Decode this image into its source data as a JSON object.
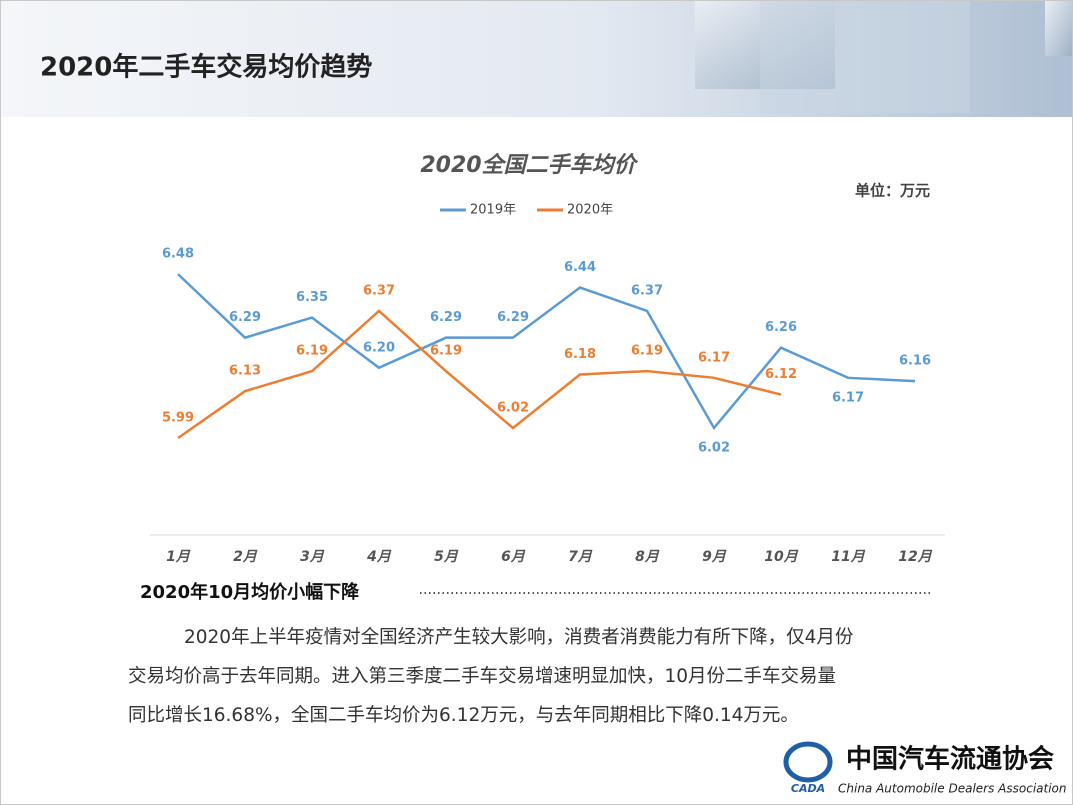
{
  "header": {
    "title": "2020年二手车交易均价趋势"
  },
  "chart_data": {
    "type": "line",
    "title": "2020全国二手车均价",
    "unit_label": "单位：万元",
    "categories": [
      "1月",
      "2月",
      "3月",
      "4月",
      "5月",
      "6月",
      "7月",
      "8月",
      "9月",
      "10月",
      "11月",
      "12月"
    ],
    "series": [
      {
        "name": "2019年",
        "color": "#5b9bd5",
        "values": [
          6.48,
          6.29,
          6.35,
          6.2,
          6.29,
          6.29,
          6.44,
          6.37,
          6.02,
          6.26,
          6.17,
          6.16
        ],
        "value_labels": [
          "6.48",
          "6.29",
          "6.35",
          "6.20",
          "6.29",
          "6.29",
          "6.44",
          "6.37",
          "6.02",
          "6.26",
          "6.17",
          "6.16"
        ]
      },
      {
        "name": "2020年",
        "color": "#ed7d31",
        "values": [
          5.99,
          6.13,
          6.19,
          6.37,
          6.19,
          6.02,
          6.18,
          6.19,
          6.17,
          6.12,
          null,
          null
        ],
        "value_labels": [
          "5.99",
          "6.13",
          "6.19",
          "6.37",
          "6.19",
          "6.02",
          "6.18",
          "6.19",
          "6.17",
          "6.12",
          null,
          null
        ]
      }
    ],
    "ylim": [
      5.7,
      6.6
    ],
    "legend": "top"
  },
  "section": {
    "heading": "2020年10月均价小幅下降",
    "paragraph": [
      "2020年上半年疫情对全国经济产生较大影响，消费者消费能力有所下降，仅4月份",
      "交易均价高于去年同期。进入第三季度二手车交易增速明显加快，10月份二手车交易量",
      "同比增长16.68%，全国二手车均价为6.12万元，与去年同期相比下降0.14万元。"
    ]
  },
  "logo": {
    "name": "中国汽车流通协会",
    "english": "China Automobile Dealers Association",
    "abbr": "CADA"
  }
}
